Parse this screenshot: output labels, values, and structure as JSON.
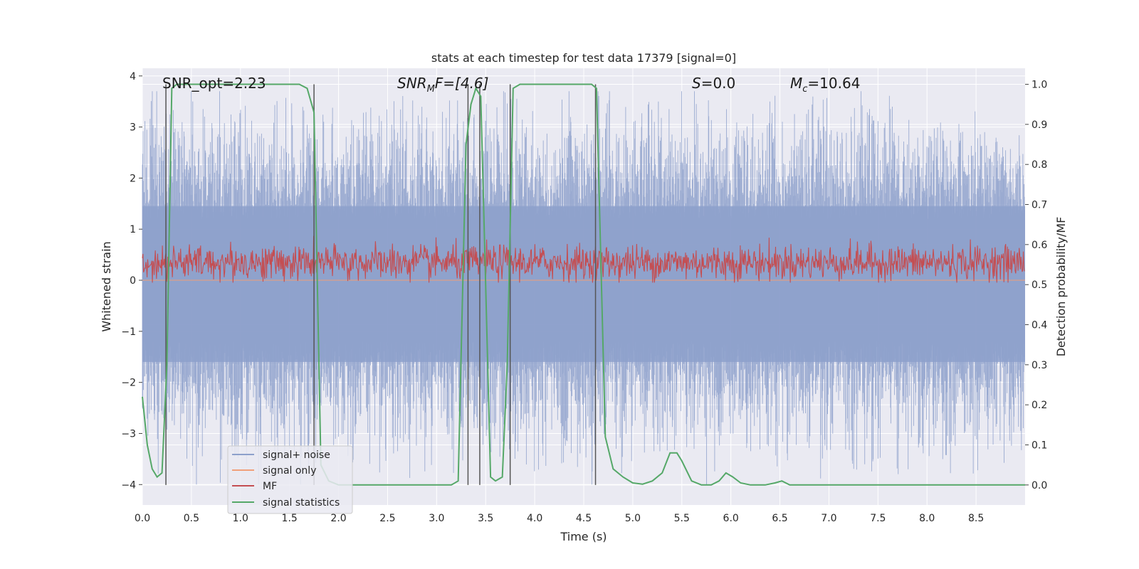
{
  "chart_data": {
    "type": "line",
    "title": "stats at each timestep for test data 17379 [signal=0]",
    "xlabel": "Time (s)",
    "ylabel_left": "Whitened strain",
    "ylabel_right": "Detection probability/MF",
    "xlim": [
      0,
      9.0
    ],
    "ylim_left": [
      -4.4,
      4.15
    ],
    "ylim_right": [
      -0.05,
      1.04
    ],
    "x_ticks": [
      "0.0",
      "0.5",
      "1.0",
      "1.5",
      "2.0",
      "2.5",
      "3.0",
      "3.5",
      "4.0",
      "4.5",
      "5.0",
      "5.5",
      "6.0",
      "6.5",
      "7.0",
      "7.5",
      "8.0",
      "8.5"
    ],
    "y_left_ticks": [
      "4",
      "3",
      "2",
      "1",
      "0",
      "−1",
      "−2",
      "−3",
      "−4"
    ],
    "y_right_ticks": [
      "1.0",
      "0.9",
      "0.8",
      "0.7",
      "0.6",
      "0.5",
      "0.4",
      "0.3",
      "0.2",
      "0.1",
      "0.0"
    ],
    "grid": true,
    "legend_position": "lower-left",
    "annotations": {
      "snr_opt": "SNR_opt=2.23",
      "snr_mf_main": "SNR",
      "snr_mf_sub": "M",
      "snr_mf_rest": "F=[4.6]",
      "s_main": "S",
      "s_rest": "=0.0",
      "mc_main": "M",
      "mc_sub": "c",
      "mc_rest": "=10.64"
    },
    "series": [
      {
        "name": "signal+ noise",
        "axis": "left",
        "color": "#8da0cb",
        "description_values": {
          "approx_range": [
            -4.0,
            3.7
          ],
          "typical_band": [
            -1.7,
            1.5
          ]
        }
      },
      {
        "name": "signal only",
        "axis": "left",
        "color": "#f0a07a",
        "values_constant": 0
      },
      {
        "name": "MF",
        "axis": "right",
        "color": "#c44e52",
        "approx_range": [
          0.5,
          0.65
        ]
      },
      {
        "name": "signal statistics",
        "axis": "right",
        "color": "#55a868",
        "x": [
          0.0,
          0.05,
          0.1,
          0.15,
          0.2,
          0.25,
          0.3,
          0.35,
          0.4,
          1.0,
          1.6,
          1.68,
          1.75,
          1.82,
          1.9,
          2.0,
          2.5,
          3.0,
          3.15,
          3.22,
          3.3,
          3.35,
          3.4,
          3.45,
          3.5,
          3.55,
          3.6,
          3.67,
          3.72,
          3.78,
          3.85,
          3.95,
          4.5,
          4.58,
          4.63,
          4.72,
          4.8,
          4.9,
          5.0,
          5.1,
          5.2,
          5.3,
          5.38,
          5.45,
          5.5,
          5.6,
          5.7,
          5.8,
          5.88,
          5.95,
          6.02,
          6.1,
          6.2,
          6.35,
          6.45,
          6.52,
          6.6,
          6.7,
          7.0,
          9.0
        ],
        "y": [
          0.22,
          0.1,
          0.04,
          0.02,
          0.03,
          0.3,
          0.99,
          1.0,
          1.0,
          1.0,
          1.0,
          0.99,
          0.93,
          0.05,
          0.01,
          0.0,
          0.0,
          0.0,
          0.0,
          0.01,
          0.85,
          0.95,
          0.99,
          0.97,
          0.5,
          0.02,
          0.01,
          0.02,
          0.3,
          0.99,
          1.0,
          1.0,
          1.0,
          1.0,
          0.99,
          0.12,
          0.04,
          0.02,
          0.005,
          0.002,
          0.01,
          0.03,
          0.08,
          0.08,
          0.06,
          0.01,
          0.0,
          0.0,
          0.01,
          0.03,
          0.02,
          0.005,
          0.0,
          0.0,
          0.005,
          0.01,
          0.0,
          0.0,
          0.0,
          0.0
        ]
      }
    ],
    "vertical_lines_x": [
      0.24,
      1.75,
      3.32,
      3.44,
      3.75,
      4.62
    ]
  },
  "legend": {
    "items": [
      {
        "label": "signal+ noise",
        "color": "#8da0cb"
      },
      {
        "label": "signal only",
        "color": "#f0a07a"
      },
      {
        "label": "MF",
        "color": "#c44e52"
      },
      {
        "label": "signal statistics",
        "color": "#55a868"
      }
    ]
  },
  "colors": {
    "plot_background": "#eaeaf2",
    "grid": "#ffffff",
    "vline": "#555555"
  }
}
